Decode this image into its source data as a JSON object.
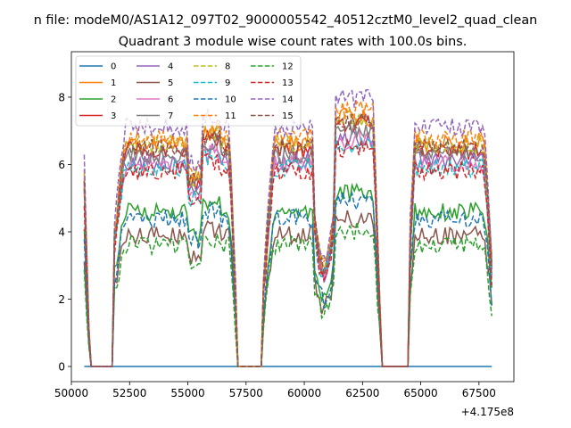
{
  "chart_data": {
    "type": "line",
    "suptitle": "n file: modeM0/AS1A12_097T02_9000005542_40512cztM0_level2_quad_clean",
    "title": "Quadrant 3 module wise count rates with 100.0s bins.",
    "xlabel": "",
    "ylabel": "",
    "x_offset_label": "+4.175e8",
    "xlim": [
      50000,
      69000
    ],
    "ylim": [
      -0.45,
      9.35
    ],
    "xticks": [
      50000,
      52500,
      55000,
      57500,
      60000,
      62500,
      65000,
      67500
    ],
    "xtick_labels": [
      "50000",
      "52500",
      "55000",
      "57500",
      "60000",
      "62500",
      "65000",
      "67500"
    ],
    "yticks": [
      0,
      2,
      4,
      6,
      8
    ],
    "ytick_labels": [
      "0",
      "2",
      "4",
      "6",
      "8"
    ],
    "legend_position": "upper-left",
    "legend_columns": 4,
    "x_range": [
      50550,
      68050
    ],
    "bin_seconds": 100,
    "gaps": [
      [
        50800,
        51800
      ],
      [
        57100,
        58200
      ],
      [
        63300,
        64500
      ]
    ],
    "segments": [
      [
        50550,
        50800
      ],
      [
        51800,
        57100
      ],
      [
        58200,
        63300
      ],
      [
        64500,
        68050
      ]
    ],
    "series": [
      {
        "name": "0",
        "color": "#1f77b4",
        "style": "solid",
        "level": 0.0
      },
      {
        "name": "1",
        "color": "#ff7f0e",
        "style": "solid",
        "level": 6.6
      },
      {
        "name": "2",
        "color": "#2ca02c",
        "style": "solid",
        "level": 4.6
      },
      {
        "name": "3",
        "color": "#d62728",
        "style": "solid",
        "level": 6.4
      },
      {
        "name": "4",
        "color": "#9467bd",
        "style": "solid",
        "level": 6.1
      },
      {
        "name": "5",
        "color": "#8c564b",
        "style": "solid",
        "level": 3.9
      },
      {
        "name": "6",
        "color": "#e377c2",
        "style": "solid",
        "level": 6.0
      },
      {
        "name": "7",
        "color": "#7f7f7f",
        "style": "solid",
        "level": 6.3
      },
      {
        "name": "8",
        "color": "#bcbd22",
        "style": "dashed",
        "level": 6.6
      },
      {
        "name": "9",
        "color": "#17becf",
        "style": "dashed",
        "level": 5.9
      },
      {
        "name": "10",
        "color": "#1f77b4",
        "style": "dashed",
        "level": 4.4
      },
      {
        "name": "11",
        "color": "#ff7f0e",
        "style": "dashed",
        "level": 6.8
      },
      {
        "name": "12",
        "color": "#2ca02c",
        "style": "dashed",
        "level": 3.6
      },
      {
        "name": "13",
        "color": "#d62728",
        "style": "dashed",
        "level": 5.8
      },
      {
        "name": "14",
        "color": "#9467bd",
        "style": "dashed",
        "level": 7.1
      },
      {
        "name": "15",
        "color": "#8c564b",
        "style": "dashed",
        "level": 6.5
      }
    ]
  }
}
